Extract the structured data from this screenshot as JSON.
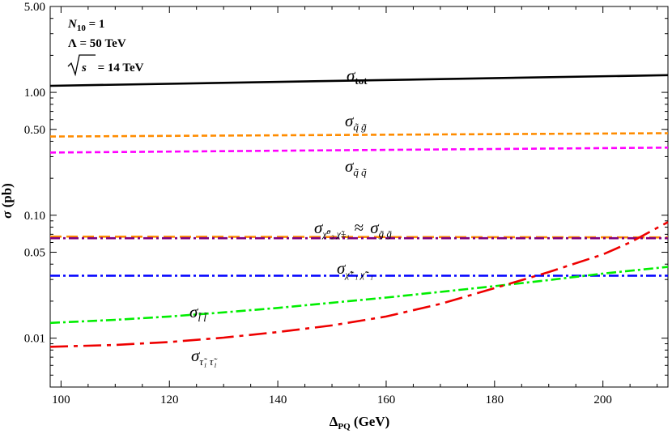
{
  "chart_data": {
    "type": "line",
    "title": "",
    "xlabel": "Δ_PQ (GeV)",
    "ylabel": "σ (pb)",
    "xlim": [
      98,
      212
    ],
    "ylim": [
      0.004,
      5.0
    ],
    "yscale": "log",
    "grid": false,
    "x_ticks": [
      "100",
      "120",
      "140",
      "160",
      "180",
      "200"
    ],
    "y_ticks": [
      "5.00",
      "1.00",
      "0.50",
      "0.10",
      "0.05",
      "0.01"
    ],
    "annotations": [
      "N₁₀ = 1",
      "Λ = 50 TeV",
      "√s = 14 TeV"
    ],
    "series": [
      {
        "label": "σ_tot",
        "color": "#000000",
        "dash": "solid",
        "x": [
          98,
          212
        ],
        "y": [
          1.13,
          1.38
        ]
      },
      {
        "label": "σ_q̃g̃",
        "color": "#ff8c00",
        "dash": "dash",
        "x": [
          98,
          212
        ],
        "y": [
          0.437,
          0.465
        ]
      },
      {
        "label": "σ_q̃q̃",
        "color": "#ff00ff",
        "dash": "dash",
        "x": [
          98,
          212
        ],
        "y": [
          0.324,
          0.355
        ]
      },
      {
        "label": "σ_g̃g̃",
        "color": "#ff8c00",
        "dash": "longdash",
        "x": [
          98,
          212
        ],
        "y": [
          0.067,
          0.066
        ]
      },
      {
        "label": "σ_χ̃⁰₂χ̃±₁",
        "color": "#800080",
        "dash": "dashdot",
        "x": [
          98,
          212
        ],
        "y": [
          0.065,
          0.065
        ]
      },
      {
        "label": "σ_χ̃⁺₁χ̃⁻₁",
        "color": "#0000ff",
        "dash": "dashdot",
        "x": [
          98,
          212
        ],
        "y": [
          0.0322,
          0.0322
        ]
      },
      {
        "label": "σ_l̃l̃",
        "color": "#00ee00",
        "dash": "dashdot",
        "x": [
          98,
          110,
          120,
          130,
          140,
          150,
          160,
          170,
          180,
          190,
          200,
          212
        ],
        "y": [
          0.0133,
          0.0141,
          0.015,
          0.0162,
          0.0176,
          0.0194,
          0.0214,
          0.0238,
          0.0265,
          0.0297,
          0.0335,
          0.038
        ]
      },
      {
        "label": "σ_τ̃₁τ̃₁",
        "color": "#ee0000",
        "dash": "longdashdot",
        "x": [
          98,
          110,
          120,
          130,
          140,
          150,
          160,
          170,
          180,
          190,
          200,
          205,
          212
        ],
        "y": [
          0.0085,
          0.0088,
          0.0093,
          0.0101,
          0.0112,
          0.0127,
          0.015,
          0.019,
          0.0255,
          0.0345,
          0.048,
          0.06,
          0.088
        ]
      }
    ]
  }
}
